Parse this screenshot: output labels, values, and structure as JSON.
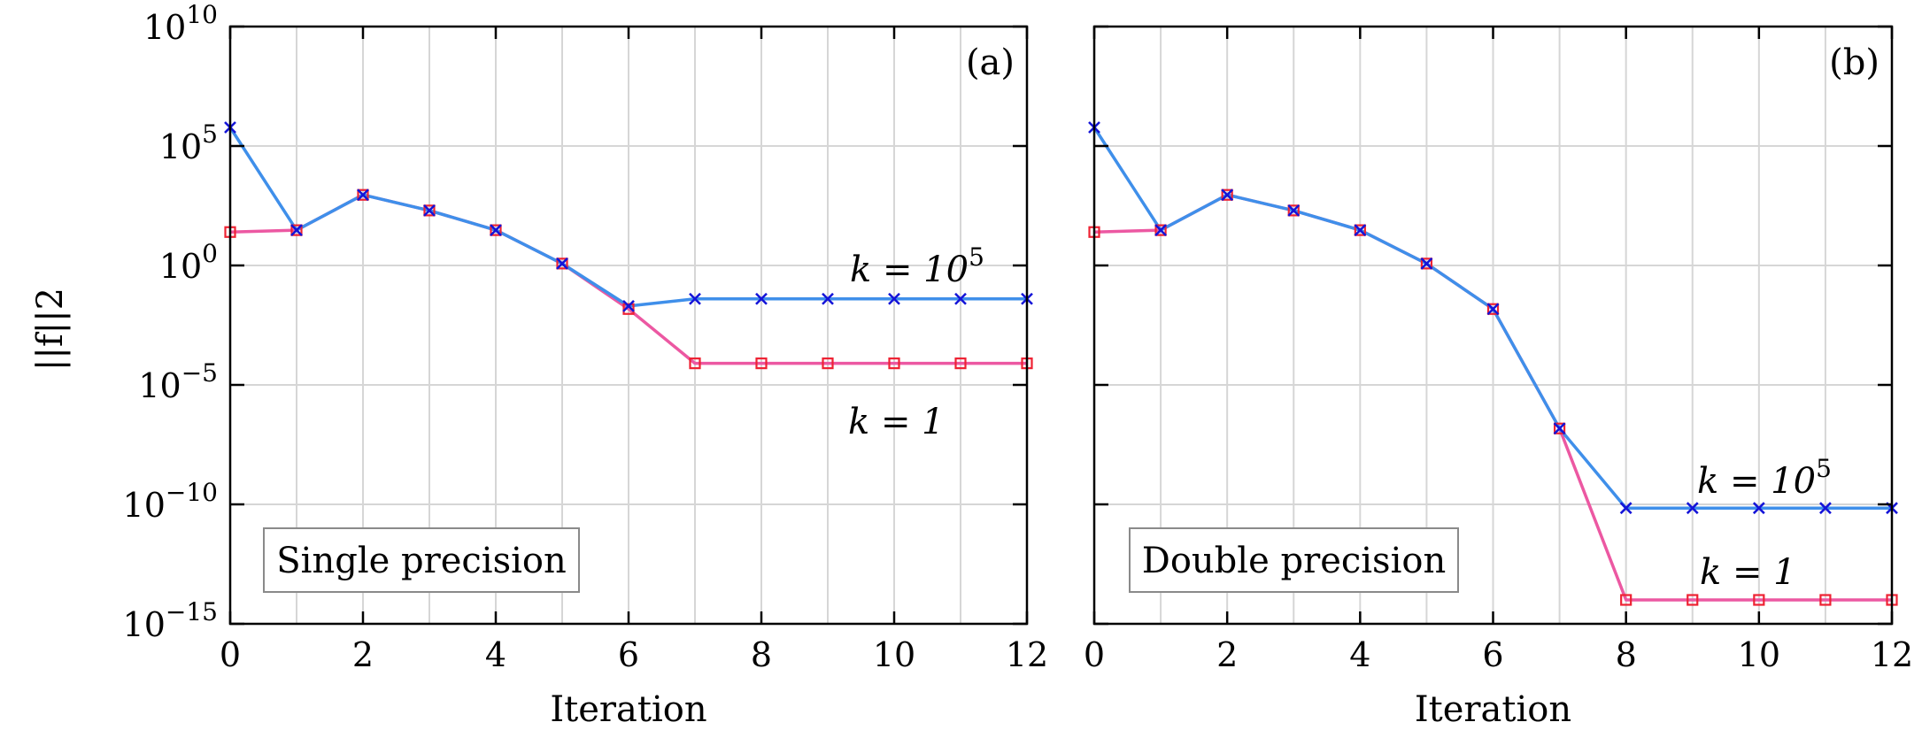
{
  "chart_data": [
    {
      "type": "line",
      "panel_label": "(a)",
      "annotation": "Single precision",
      "xlabel": "Iteration",
      "ylabel": "||f||2",
      "xlim": [
        0,
        12
      ],
      "ylim": [
        1e-15,
        10000000000.0
      ],
      "yscale": "log",
      "x_ticks": [
        "0",
        "2",
        "4",
        "6",
        "8",
        "10",
        "12"
      ],
      "y_ticks": [
        {
          "base": "10",
          "exp": "10"
        },
        {
          "base": "10",
          "exp": "5"
        },
        {
          "base": "10",
          "exp": "0"
        },
        {
          "base": "10",
          "exp": "−5"
        },
        {
          "base": "10",
          "exp": "−10"
        },
        {
          "base": "10",
          "exp": "−15"
        }
      ],
      "grid": true,
      "series": [
        {
          "name": "k = 10^5",
          "label_text": {
            "prefix": "k = 10",
            "sup": "5"
          },
          "color": "#3f8fea",
          "marker_color": "#1414d8",
          "marker": "x",
          "x": [
            0,
            1,
            2,
            3,
            4,
            5,
            6,
            7,
            8,
            9,
            10,
            11,
            12
          ],
          "y": [
            600000.0,
            30,
            900,
            200,
            30,
            1.2,
            0.02,
            0.04,
            0.04,
            0.04,
            0.04,
            0.04,
            0.04
          ]
        },
        {
          "name": "k = 1",
          "label_text": {
            "prefix": "k = 1",
            "sup": ""
          },
          "color": "#ec58a2",
          "marker_color": "#ee2233",
          "marker": "square",
          "x": [
            0,
            1,
            2,
            3,
            4,
            5,
            6,
            7,
            8,
            9,
            10,
            11,
            12
          ],
          "y": [
            25,
            30,
            900,
            200,
            30,
            1.2,
            0.015,
            8e-05,
            8e-05,
            8e-05,
            8e-05,
            8e-05,
            8e-05
          ]
        }
      ]
    },
    {
      "type": "line",
      "panel_label": "(b)",
      "annotation": "Double precision",
      "xlabel": "Iteration",
      "ylabel": "",
      "xlim": [
        0,
        12
      ],
      "ylim": [
        1e-15,
        10000000000.0
      ],
      "yscale": "log",
      "x_ticks": [
        "0",
        "2",
        "4",
        "6",
        "8",
        "10",
        "12"
      ],
      "grid": true,
      "series": [
        {
          "name": "k = 10^5",
          "label_text": {
            "prefix": "k = 10",
            "sup": "5"
          },
          "color": "#3f8fea",
          "marker_color": "#1414d8",
          "marker": "x",
          "x": [
            0,
            1,
            2,
            3,
            4,
            5,
            6,
            7,
            8,
            9,
            10,
            11,
            12
          ],
          "y": [
            600000.0,
            30,
            900,
            200,
            30,
            1.2,
            0.015,
            1.5e-07,
            7e-11,
            7e-11,
            7e-11,
            7e-11,
            7e-11
          ]
        },
        {
          "name": "k = 1",
          "label_text": {
            "prefix": "k = 1",
            "sup": ""
          },
          "color": "#ec58a2",
          "marker_color": "#ee2233",
          "marker": "square",
          "x": [
            0,
            1,
            2,
            3,
            4,
            5,
            6,
            7,
            8,
            9,
            10,
            11,
            12
          ],
          "y": [
            25,
            30,
            900,
            200,
            30,
            1.2,
            0.015,
            1.5e-07,
            1e-14,
            1e-14,
            1e-14,
            1e-14,
            1e-14
          ]
        }
      ]
    }
  ]
}
